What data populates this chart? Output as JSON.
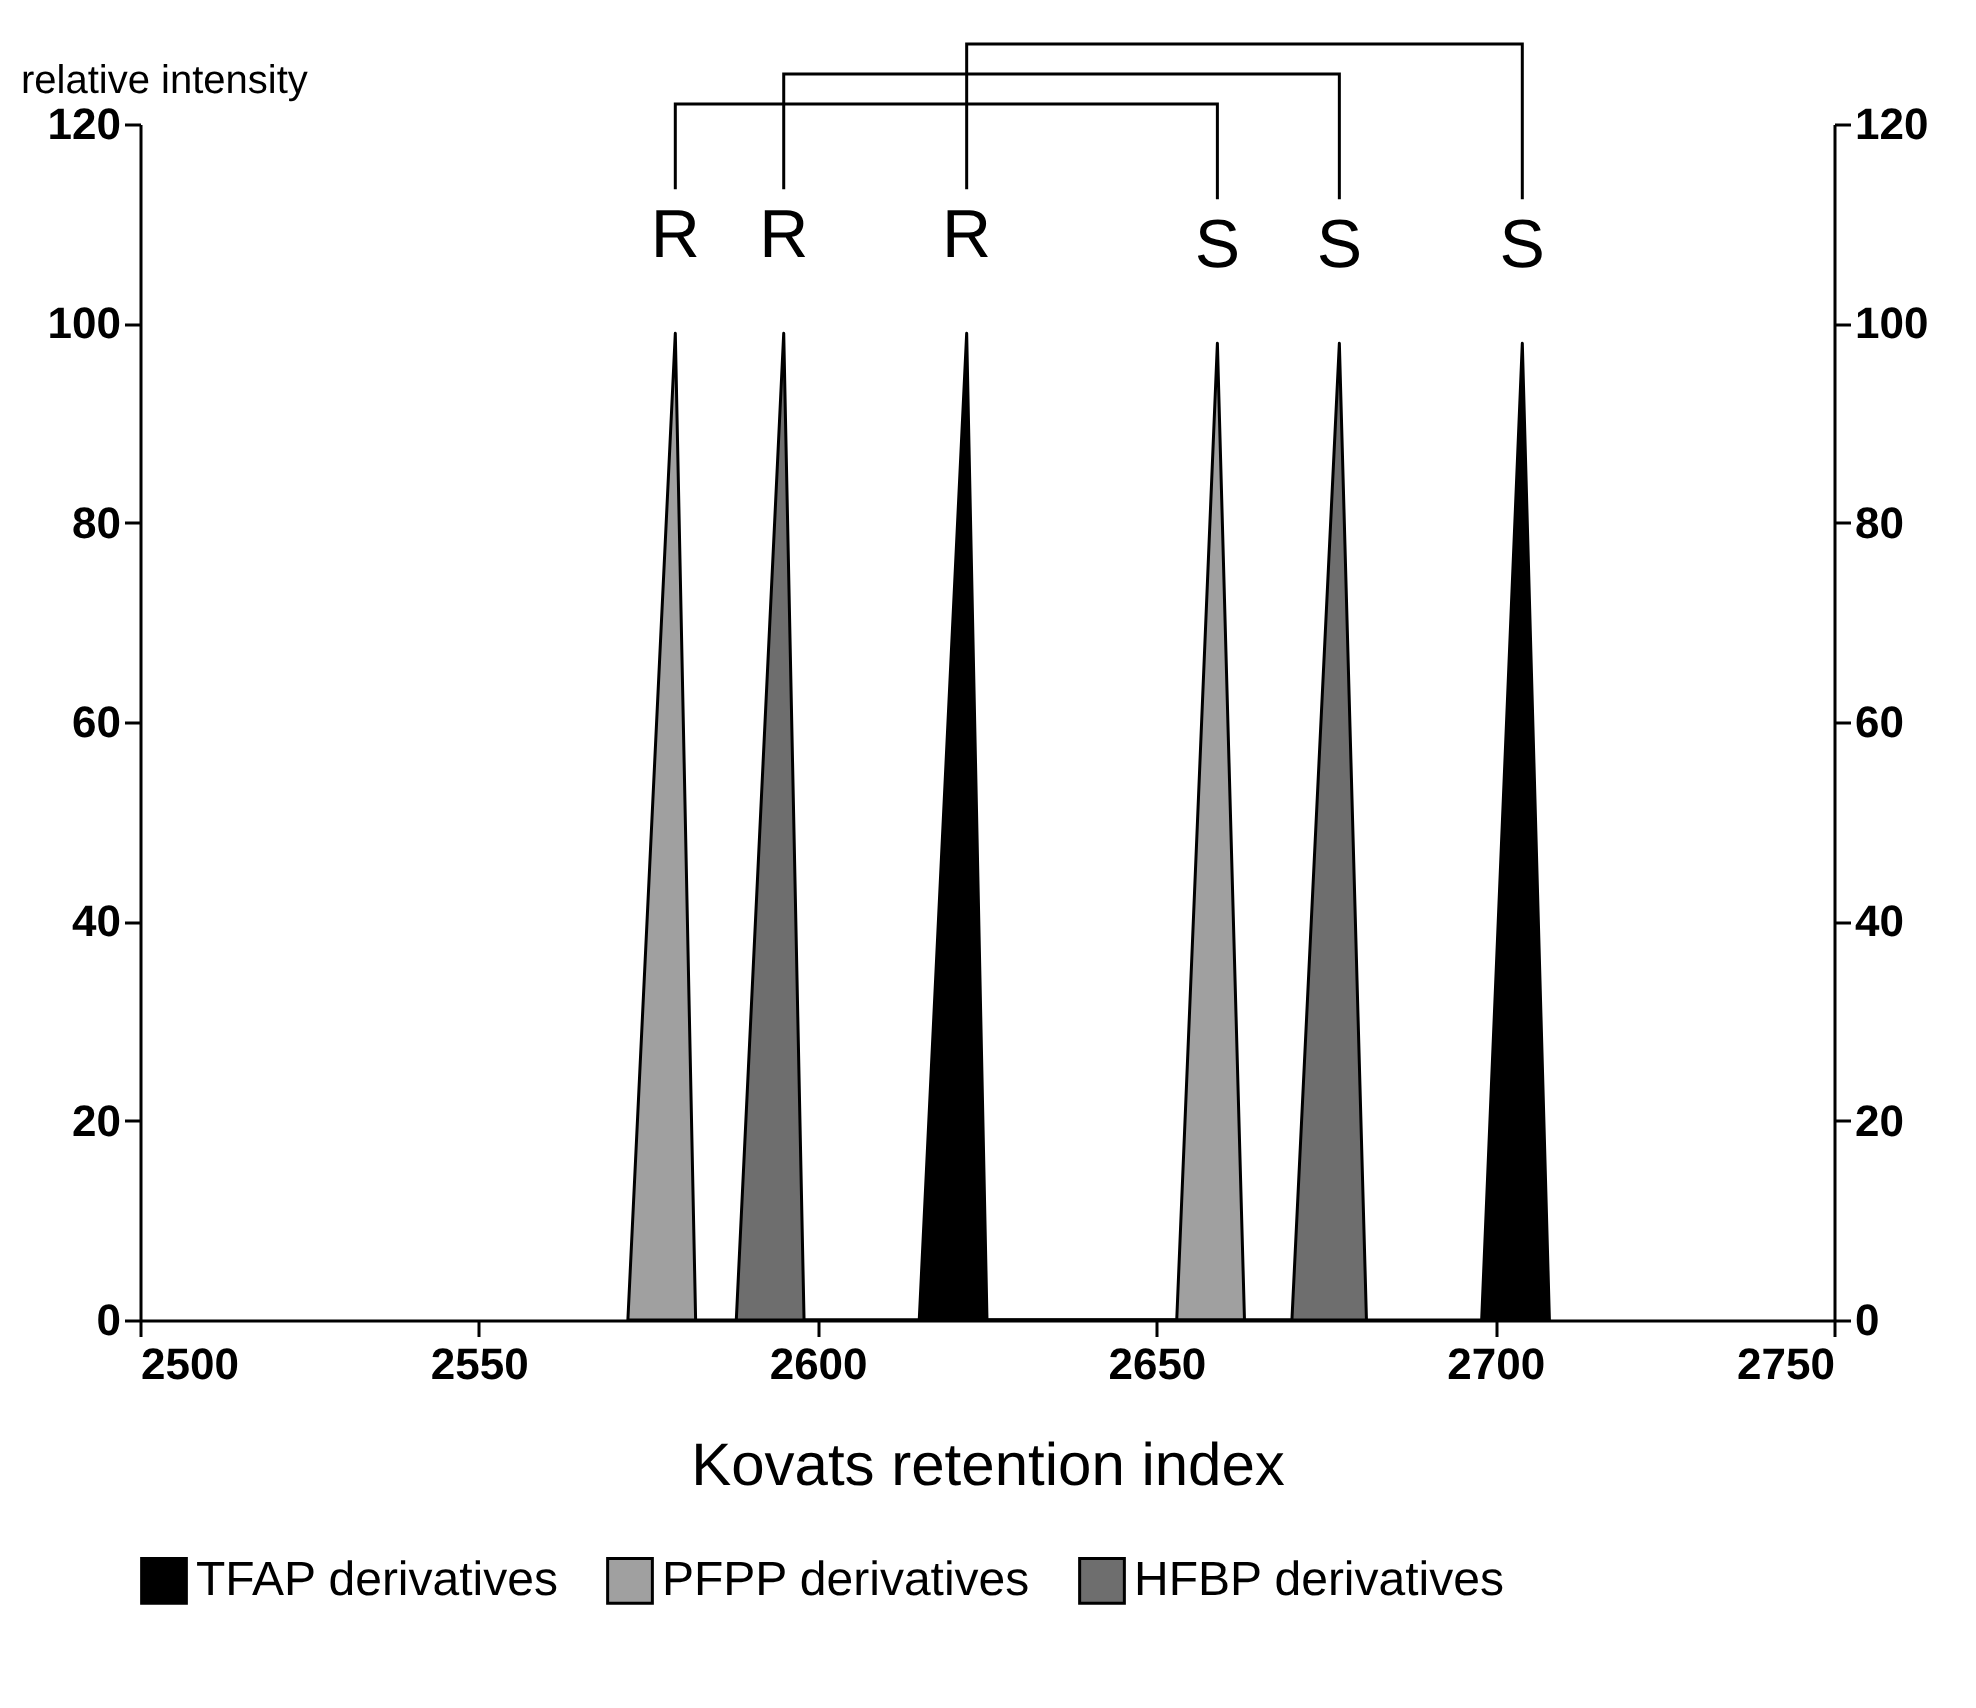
{
  "chart_data": {
    "type": "area",
    "xlabel": "Kovats retention index",
    "ylabel": "relative intensity",
    "xlim": [
      2500,
      2750
    ],
    "xticks": [
      2500,
      2550,
      2600,
      2650,
      2700,
      2750
    ],
    "ylim": [
      0,
      120
    ],
    "yticks": [
      0,
      20,
      40,
      60,
      80,
      100,
      120
    ],
    "y2lim": [
      0,
      120
    ],
    "y2ticks": [
      0,
      20,
      40,
      60,
      80,
      100,
      120
    ],
    "legend": "bottom",
    "grid": false,
    "series": [
      {
        "name": "TFAP derivatives",
        "color": "#000000",
        "x": [
          2615,
          2622,
          2625,
          2698,
          2704,
          2708
        ],
        "values": [
          0,
          99,
          0,
          0,
          98,
          0
        ]
      },
      {
        "name": "PFPP derivatives",
        "color": "#a0a0a0",
        "x": [
          2572,
          2579,
          2582,
          2653,
          2659,
          2663
        ],
        "values": [
          0,
          99,
          0,
          0,
          98,
          0
        ]
      },
      {
        "name": "HFBP derivatives",
        "color": "#6e6e6e",
        "x": [
          2588,
          2595,
          2598,
          2670,
          2677,
          2681
        ],
        "values": [
          0,
          99,
          0,
          0,
          98,
          0
        ]
      }
    ],
    "annotations": [
      {
        "text": "R",
        "x": 2579,
        "y": 99
      },
      {
        "text": "R",
        "x": 2595,
        "y": 99
      },
      {
        "text": "R",
        "x": 2622,
        "y": 99
      },
      {
        "text": "S",
        "x": 2659,
        "y": 98
      },
      {
        "text": "S",
        "x": 2677,
        "y": 98
      },
      {
        "text": "S",
        "x": 2704,
        "y": 98
      }
    ]
  }
}
